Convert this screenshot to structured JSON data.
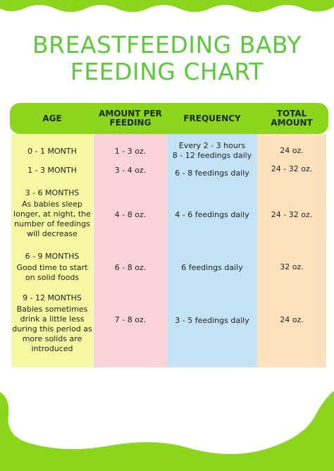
{
  "title": {
    "line1": "BREASTFEEDING BABY",
    "line2": "FEEDING CHART"
  },
  "colors": {
    "accent_green": "#8bd61d",
    "title_green": "#5cc93a",
    "age_column": "#f6f7a1",
    "amount_column": "#fbd3d7",
    "frequency_column": "#c4e2f6",
    "total_column": "#fde1bd"
  },
  "table": {
    "headers": {
      "age": "AGE",
      "amount_line1": "AMOUNT PER",
      "amount_line2": "FEEDING",
      "frequency": "FREQUENCY",
      "total_line1": "TOTAL",
      "total_line2": "AMOUNT"
    },
    "rows": [
      {
        "age": "0 - 1 MONTH",
        "note": [],
        "amount": "1 - 3 oz.",
        "frequency": [
          "Every 2 - 3 hours",
          "8 - 12 feedings daily"
        ],
        "total": "24 oz."
      },
      {
        "age": "1 - 3 MONTH",
        "note": [],
        "amount": "3 - 4 oz.",
        "frequency": [
          "6 - 8 feedings daily"
        ],
        "total": "24 - 32 oz."
      },
      {
        "age": "3 - 6 MONTHS",
        "note": [
          "As babies sleep",
          "longer, at night, the",
          "number of feedings",
          "will decrease"
        ],
        "amount": "4 - 8 oz.",
        "frequency": [
          "4 - 6 feedings daily"
        ],
        "total": "24 - 32 oz."
      },
      {
        "age": "6 - 9 MONTHS",
        "note": [
          "Good time to start",
          "on solid foods"
        ],
        "amount": "6 - 8 oz.",
        "frequency": [
          "6 feedings daily"
        ],
        "total": "32 oz."
      },
      {
        "age": "9 - 12 MONTHS",
        "note": [
          "Babies sometimes",
          "drink a little less",
          "during this period as",
          "more solids are",
          "introduced"
        ],
        "amount": "7 - 8 oz.",
        "frequency": [
          "3 - 5 feedings daily"
        ],
        "total": "24 oz."
      }
    ]
  }
}
